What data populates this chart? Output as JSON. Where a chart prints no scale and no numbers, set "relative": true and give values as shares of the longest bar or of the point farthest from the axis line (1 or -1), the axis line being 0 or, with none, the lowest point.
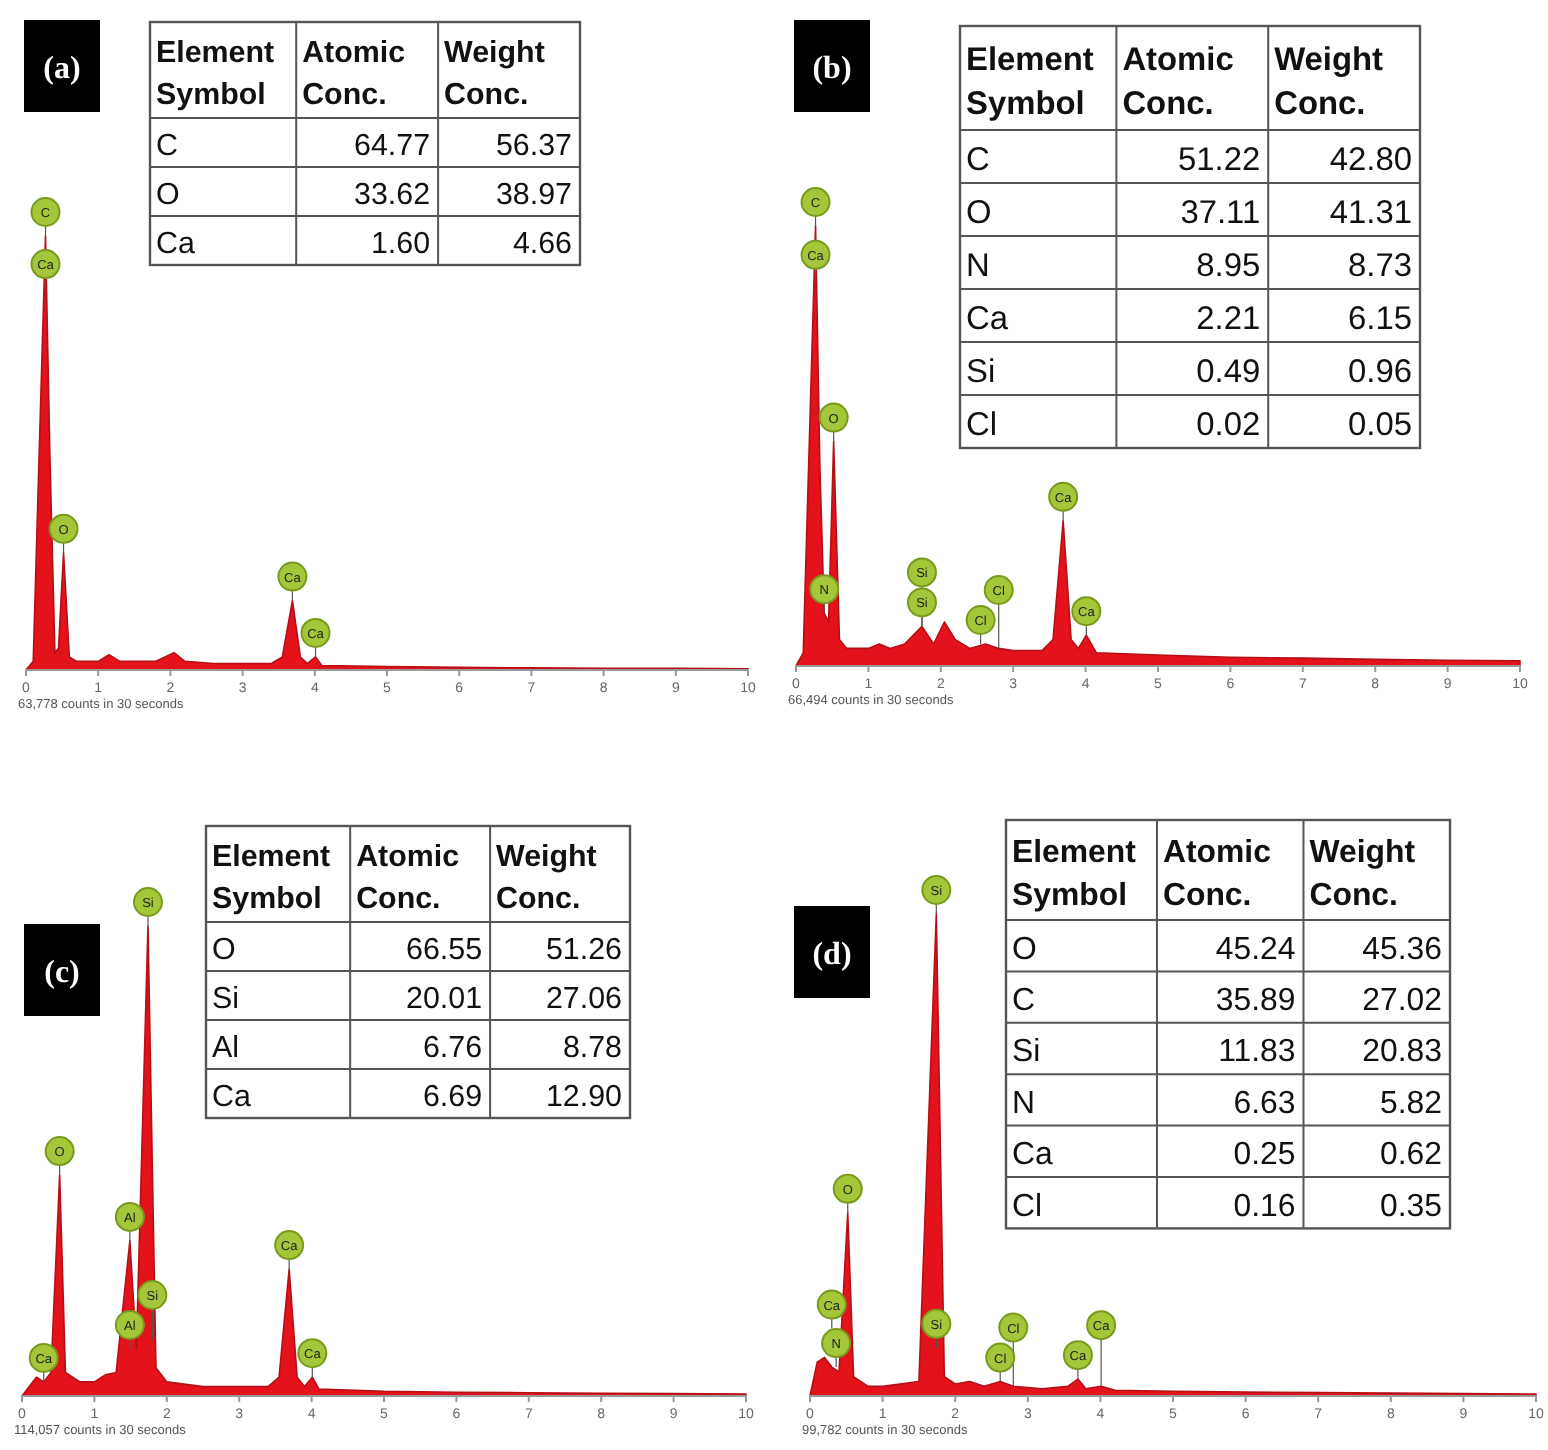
{
  "chart_data": [
    {
      "type": "area",
      "title": "(a)",
      "relative": true,
      "color": "#e3121b",
      "xlim": [
        0,
        10
      ],
      "xticks": [
        0,
        1,
        2,
        3,
        4,
        5,
        6,
        7,
        8,
        9,
        10
      ],
      "x": [
        0,
        0.1,
        0.2,
        0.27,
        0.33,
        0.4,
        0.45,
        0.52,
        0.6,
        0.7,
        1.0,
        1.15,
        1.3,
        1.8,
        2.05,
        2.2,
        2.6,
        3.0,
        3.4,
        3.55,
        3.69,
        3.8,
        3.9,
        4.01,
        4.1,
        5,
        6,
        7,
        8,
        9,
        10
      ],
      "values": [
        0,
        0.02,
        0.6,
        1.0,
        0.5,
        0.04,
        0.05,
        0.27,
        0.03,
        0.02,
        0.02,
        0.035,
        0.02,
        0.02,
        0.04,
        0.02,
        0.015,
        0.015,
        0.015,
        0.03,
        0.16,
        0.03,
        0.015,
        0.03,
        0.01,
        0.008,
        0.006,
        0.005,
        0.004,
        0.004,
        0.003
      ],
      "annotations": [
        "63,778 counts in 30 seconds",
        {
          "text": "C",
          "x": 0.27,
          "y": 1.0
        },
        {
          "text": "Ca",
          "x": 0.27,
          "y": 0.88
        },
        {
          "text": "O",
          "x": 0.52,
          "y": 0.27
        },
        {
          "text": "Ca",
          "x": 3.69,
          "y": 0.16
        },
        {
          "text": "Ca",
          "x": 4.01,
          "y": 0.03
        }
      ]
    },
    {
      "type": "other",
      "ylabel": "Element Symbol",
      "categories": [
        "C",
        "O",
        "Ca"
      ],
      "data_labels": true,
      "series": [
        {
          "name": "Atomic Conc.",
          "values": [
            64.77,
            33.62,
            1.6
          ],
          "value_labels": [
            "64.77",
            "33.62",
            "1.60"
          ]
        },
        {
          "name": "Weight Conc.",
          "values": [
            56.37,
            38.97,
            4.66
          ]
        }
      ]
    },
    {
      "type": "area",
      "title": "(b)",
      "relative": true,
      "color": "#e3121b",
      "xlim": [
        0,
        10
      ],
      "xticks": [
        0,
        1,
        2,
        3,
        4,
        5,
        6,
        7,
        8,
        9,
        10
      ],
      "x": [
        0,
        0.1,
        0.2,
        0.27,
        0.33,
        0.39,
        0.45,
        0.52,
        0.6,
        0.7,
        1.0,
        1.15,
        1.3,
        1.5,
        1.74,
        1.9,
        2.05,
        2.2,
        2.4,
        2.62,
        2.8,
        3.0,
        3.4,
        3.55,
        3.69,
        3.8,
        3.9,
        4.01,
        4.15,
        5,
        6,
        7,
        8,
        9,
        10
      ],
      "values": [
        0,
        0.03,
        0.6,
        1.0,
        0.45,
        0.12,
        0.1,
        0.51,
        0.06,
        0.04,
        0.04,
        0.05,
        0.04,
        0.05,
        0.09,
        0.05,
        0.1,
        0.06,
        0.04,
        0.05,
        0.04,
        0.035,
        0.035,
        0.06,
        0.33,
        0.06,
        0.04,
        0.07,
        0.03,
        0.025,
        0.02,
        0.018,
        0.015,
        0.013,
        0.012
      ],
      "annotations": [
        "66,494 counts in 30 seconds",
        {
          "text": "C",
          "x": 0.27,
          "y": 1.0
        },
        {
          "text": "Ca",
          "x": 0.27,
          "y": 0.88
        },
        {
          "text": "O",
          "x": 0.52,
          "y": 0.51
        },
        {
          "text": "N",
          "x": 0.39,
          "y": 0.12
        },
        {
          "text": "Si",
          "x": 1.74,
          "y": 0.09
        },
        {
          "text": "Si",
          "x": 1.74,
          "y": 0.09
        },
        {
          "text": "Cl",
          "x": 2.55,
          "y": 0.05
        },
        {
          "text": "Cl",
          "x": 2.8,
          "y": 0.04
        },
        {
          "text": "Ca",
          "x": 3.69,
          "y": 0.33
        },
        {
          "text": "Ca",
          "x": 4.01,
          "y": 0.07
        }
      ]
    },
    {
      "type": "other",
      "ylabel": "Element Symbol",
      "categories": [
        "C",
        "O",
        "N",
        "Ca",
        "Si",
        "Cl"
      ],
      "data_labels": true,
      "series": [
        {
          "name": "Atomic Conc.",
          "values": [
            51.22,
            37.11,
            8.95,
            2.21,
            0.49,
            0.02
          ]
        },
        {
          "name": "Weight Conc.",
          "values": [
            42.8,
            41.31,
            8.73,
            6.15,
            0.96,
            0.05
          ],
          "value_labels": [
            "42.80",
            "41.31",
            "8.73",
            "6.15",
            "0.96",
            "0.05"
          ]
        }
      ]
    },
    {
      "type": "area",
      "title": "(c)",
      "relative": true,
      "color": "#e3121b",
      "xlim": [
        0,
        10
      ],
      "xticks": [
        0,
        1,
        2,
        3,
        4,
        5,
        6,
        7,
        8,
        9,
        10
      ],
      "x": [
        0,
        0.1,
        0.2,
        0.3,
        0.4,
        0.52,
        0.6,
        0.8,
        1.0,
        1.15,
        1.3,
        1.49,
        1.58,
        1.74,
        1.85,
        2.0,
        2.5,
        3.0,
        3.4,
        3.55,
        3.69,
        3.8,
        3.9,
        4.01,
        4.1,
        5,
        6,
        7,
        8,
        9,
        10
      ],
      "values": [
        0,
        0.02,
        0.04,
        0.03,
        0.05,
        0.47,
        0.05,
        0.03,
        0.03,
        0.045,
        0.05,
        0.33,
        0.1,
        1.0,
        0.06,
        0.03,
        0.02,
        0.02,
        0.02,
        0.04,
        0.27,
        0.04,
        0.02,
        0.04,
        0.015,
        0.01,
        0.008,
        0.007,
        0.006,
        0.005,
        0.004
      ],
      "annotations": [
        "114,057 counts in 30 seconds",
        {
          "text": "Si",
          "x": 1.74,
          "y": 1.0
        },
        {
          "text": "O",
          "x": 0.52,
          "y": 0.47
        },
        {
          "text": "Al",
          "x": 1.49,
          "y": 0.33
        },
        {
          "text": "Al",
          "x": 1.49,
          "y": 0.1
        },
        {
          "text": "Si",
          "x": 1.8,
          "y": 0.12
        },
        {
          "text": "Ca",
          "x": 0.3,
          "y": 0.03
        },
        {
          "text": "Ca",
          "x": 3.69,
          "y": 0.27
        },
        {
          "text": "Ca",
          "x": 4.01,
          "y": 0.04
        }
      ]
    },
    {
      "type": "other",
      "ylabel": "Element Symbol",
      "categories": [
        "O",
        "Si",
        "Al",
        "Ca"
      ],
      "data_labels": true,
      "series": [
        {
          "name": "Atomic Conc.",
          "values": [
            66.55,
            20.01,
            6.76,
            6.69
          ]
        },
        {
          "name": "Weight Conc.",
          "values": [
            51.26,
            27.06,
            8.78,
            12.9
          ],
          "value_labels": [
            "51.26",
            "27.06",
            "8.78",
            "12.90"
          ]
        }
      ]
    },
    {
      "type": "area",
      "title": "(d)",
      "relative": true,
      "color": "#e3121b",
      "xlim": [
        0,
        10
      ],
      "xticks": [
        0,
        1,
        2,
        3,
        4,
        5,
        6,
        7,
        8,
        9,
        10
      ],
      "x": [
        0,
        0.1,
        0.2,
        0.3,
        0.4,
        0.52,
        0.6,
        0.8,
        1.0,
        1.5,
        1.74,
        1.85,
        2.0,
        2.2,
        2.4,
        2.62,
        2.8,
        3.2,
        3.55,
        3.69,
        3.8,
        4.01,
        4.2,
        5,
        6,
        7,
        8,
        9,
        10
      ],
      "values": [
        0,
        0.07,
        0.08,
        0.06,
        0.05,
        0.38,
        0.04,
        0.02,
        0.02,
        0.03,
        1.0,
        0.04,
        0.025,
        0.03,
        0.02,
        0.03,
        0.02,
        0.015,
        0.02,
        0.035,
        0.015,
        0.02,
        0.012,
        0.01,
        0.008,
        0.007,
        0.006,
        0.005,
        0.004
      ],
      "annotations": [
        "99,782 counts in 30 seconds",
        {
          "text": "Si",
          "x": 1.74,
          "y": 1.0
        },
        {
          "text": "O",
          "x": 0.52,
          "y": 0.38
        },
        {
          "text": "Ca",
          "x": 0.3,
          "y": 0.14
        },
        {
          "text": "N",
          "x": 0.36,
          "y": 0.06
        },
        {
          "text": "Si",
          "x": 1.74,
          "y": 0.1
        },
        {
          "text": "Cl",
          "x": 2.62,
          "y": 0.03
        },
        {
          "text": "Cl",
          "x": 2.8,
          "y": 0.02
        },
        {
          "text": "Ca",
          "x": 3.69,
          "y": 0.035
        },
        {
          "text": "Ca",
          "x": 4.01,
          "y": 0.02
        }
      ]
    },
    {
      "type": "other",
      "ylabel": "Element Symbol",
      "categories": [
        "O",
        "C",
        "Si",
        "N",
        "Ca",
        "Cl"
      ],
      "data_labels": true,
      "series": [
        {
          "name": "Atomic Conc.",
          "values": [
            45.24,
            35.89,
            11.83,
            6.63,
            0.25,
            0.16
          ]
        },
        {
          "name": "Weight Conc.",
          "values": [
            45.36,
            27.02,
            20.83,
            5.82,
            0.62,
            0.35
          ]
        }
      ]
    }
  ]
}
